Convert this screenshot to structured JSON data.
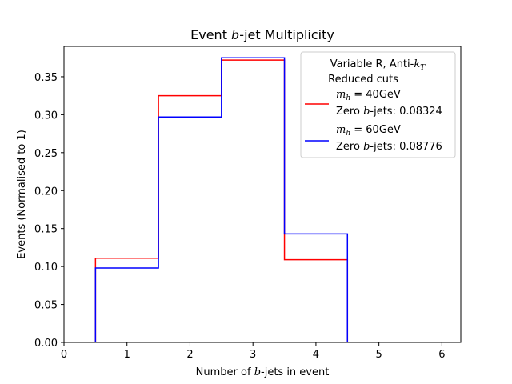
{
  "chart_data": {
    "type": "step",
    "title_pre": "Event ",
    "title_var": "b",
    "title_post": "-jet Multiplicity",
    "xlabel_pre": "Number of ",
    "xlabel_var": "b",
    "xlabel_post": "-jets in event",
    "ylabel": "Events (Normalised to 1)",
    "xlim": [
      0,
      6.3
    ],
    "ylim": [
      0,
      0.39
    ],
    "xticks": [
      0,
      1,
      2,
      3,
      4,
      5,
      6
    ],
    "xtick_labels": [
      "0",
      "1",
      "2",
      "3",
      "4",
      "5",
      "6"
    ],
    "yticks": [
      0.0,
      0.05,
      0.1,
      0.15,
      0.2,
      0.25,
      0.3,
      0.35
    ],
    "ytick_labels": [
      "0.00",
      "0.05",
      "0.10",
      "0.15",
      "0.20",
      "0.25",
      "0.30",
      "0.35"
    ],
    "bin_edges": [
      -0.5,
      0.5,
      1.5,
      2.5,
      3.5,
      4.5,
      5.5,
      6.5
    ],
    "legend": {
      "placement": "top-right",
      "title_line1_pre": "Variable R, Anti-",
      "title_line1_var": "k",
      "title_line1_sub": "T",
      "title_line2": "Reduced cuts"
    },
    "series": [
      {
        "name_var": "m",
        "name_sub": "h",
        "name_eq": " = 40GeV",
        "zero_pre": "Zero ",
        "zero_var": "b",
        "zero_post": "-jets: 0.08324",
        "color": "#ff0000",
        "values": [
          0.0,
          0.111,
          0.325,
          0.372,
          0.109,
          0.0,
          0.0
        ]
      },
      {
        "name_var": "m",
        "name_sub": "h",
        "name_eq": " = 60GeV",
        "zero_pre": "Zero ",
        "zero_var": "b",
        "zero_post": "-jets: 0.08776",
        "color": "#0000ff",
        "values": [
          0.0,
          0.098,
          0.297,
          0.375,
          0.143,
          0.0,
          0.0
        ]
      }
    ]
  }
}
